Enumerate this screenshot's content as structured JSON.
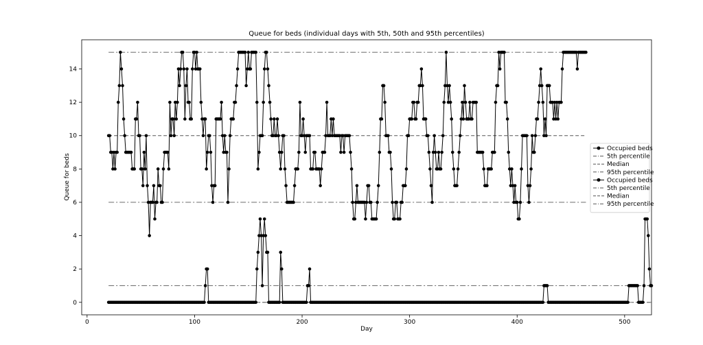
{
  "chart_data": {
    "type": "line",
    "title": "Queue for beds (individual days with 5th, 50th and 95th percentiles)",
    "xlabel": "Day",
    "ylabel": "Queue for beds",
    "xlim": [
      -5,
      525
    ],
    "ylim": [
      -0.75,
      15.75
    ],
    "xticks": [
      0,
      100,
      200,
      300,
      400,
      500
    ],
    "yticks": [
      0,
      2,
      4,
      6,
      8,
      10,
      12,
      14
    ],
    "grid": false,
    "legend_position": "right",
    "legend": [
      {
        "label": "Occupied beds",
        "style": "marker-line"
      },
      {
        "label": "5th percentile",
        "style": "dashdot"
      },
      {
        "label": "Median",
        "style": "dashed"
      },
      {
        "label": "95th percentile",
        "style": "dashdot"
      },
      {
        "label": "Occupied beds",
        "style": "marker-line"
      },
      {
        "label": "5th percentile",
        "style": "dashdot"
      },
      {
        "label": "Median",
        "style": "dashed"
      },
      {
        "label": "95th percentile",
        "style": "dashdot"
      }
    ],
    "series": [
      {
        "x_start": 20,
        "values": [
          10,
          10,
          9,
          9,
          8,
          9,
          8,
          9,
          9,
          12,
          13,
          15,
          14,
          13,
          11,
          10,
          9,
          9,
          9,
          9,
          9,
          9,
          8,
          8,
          8,
          11,
          11,
          12,
          10,
          10,
          8,
          8,
          7,
          9,
          8,
          10,
          7,
          6,
          4,
          6,
          6,
          6,
          7,
          5,
          6,
          6,
          8,
          7,
          7,
          6,
          6,
          8,
          9,
          9,
          9,
          9,
          8,
          12,
          10,
          11,
          11,
          10,
          12,
          11,
          12,
          14,
          13,
          14,
          15,
          15,
          14,
          11,
          13,
          14,
          12,
          12,
          11,
          11,
          14,
          15,
          15,
          14,
          15,
          14,
          14,
          14,
          12,
          11,
          10,
          11,
          11,
          8,
          9,
          10,
          10,
          9,
          7,
          6,
          7,
          7,
          11,
          11,
          11,
          11,
          11,
          12,
          10,
          9,
          10,
          9,
          9,
          6,
          8,
          10,
          11,
          11,
          11,
          12,
          12,
          13,
          14,
          15,
          15,
          15,
          15,
          15,
          15,
          15,
          13,
          14,
          15,
          14,
          14,
          15,
          15,
          15,
          15,
          15,
          12,
          8,
          9,
          10,
          10,
          10,
          12,
          14,
          15,
          15,
          14,
          13,
          12,
          11,
          10,
          10,
          11,
          10,
          10,
          11,
          10,
          9,
          8,
          9,
          10,
          10,
          8,
          7,
          6,
          6,
          6,
          6,
          6,
          6,
          6,
          7,
          8,
          8,
          8,
          9,
          12,
          10,
          10,
          11,
          10,
          9,
          10,
          10,
          10,
          10,
          8,
          8,
          8,
          9,
          9,
          8,
          8,
          8,
          8,
          7,
          8,
          9,
          9,
          9,
          10,
          12,
          10,
          10,
          10,
          11,
          10,
          11,
          10,
          10,
          10,
          10,
          10,
          10,
          9,
          10,
          10,
          9,
          10,
          10,
          10,
          10,
          10,
          9,
          8,
          6,
          5,
          5,
          6,
          7,
          6,
          6,
          6,
          6,
          6,
          6,
          6,
          5,
          6,
          7,
          7,
          6,
          6,
          5,
          5,
          5,
          5,
          5,
          6,
          7,
          9,
          11,
          11,
          13,
          13,
          12,
          10,
          10,
          10,
          9,
          9,
          8,
          6,
          5,
          5,
          6,
          6,
          5,
          5,
          5,
          6,
          6,
          7,
          7,
          7,
          8,
          10,
          10,
          11,
          11,
          11,
          12,
          12,
          11,
          11,
          12,
          12,
          13,
          13,
          14,
          13,
          11,
          11,
          11,
          10,
          10,
          9,
          8,
          7,
          6,
          9,
          10,
          9,
          8,
          8,
          9,
          8,
          8,
          9,
          10,
          12,
          13,
          15,
          13,
          12,
          13,
          12,
          11,
          9,
          8,
          7,
          7,
          7,
          8,
          9,
          10,
          11,
          12,
          11,
          13,
          12,
          11,
          11,
          11,
          12,
          11,
          11,
          12,
          12,
          12,
          12,
          9,
          9,
          9,
          9,
          9,
          9,
          8,
          7,
          7,
          7,
          8,
          8,
          8,
          8,
          9,
          9,
          9,
          12,
          13,
          13,
          15,
          14,
          15,
          15,
          15,
          15,
          12,
          12,
          11,
          9,
          8,
          7,
          8,
          7,
          6,
          7,
          6,
          6,
          5,
          5,
          6,
          8,
          10,
          10,
          10,
          10,
          10,
          7,
          6,
          7,
          8,
          10,
          9,
          9,
          10,
          11,
          11,
          12,
          13,
          14,
          13,
          12,
          10,
          11,
          10,
          13,
          13,
          13,
          12,
          12,
          12,
          11,
          12,
          11,
          12,
          11,
          12,
          12,
          12,
          14,
          15,
          15,
          15,
          15,
          15,
          15,
          15,
          15,
          15,
          15,
          15,
          15,
          15,
          14,
          15,
          15,
          15,
          15,
          15,
          15,
          15,
          15
        ],
        "percentiles": {
          "p5": 6,
          "median": 10,
          "p95": 15
        }
      },
      {
        "x_start": 20,
        "values": [
          0,
          0,
          0,
          0,
          0,
          0,
          0,
          0,
          0,
          0,
          0,
          0,
          0,
          0,
          0,
          0,
          0,
          0,
          0,
          0,
          0,
          0,
          0,
          0,
          0,
          0,
          0,
          0,
          0,
          0,
          0,
          0,
          0,
          0,
          0,
          0,
          0,
          0,
          0,
          0,
          0,
          0,
          0,
          0,
          0,
          0,
          0,
          0,
          0,
          0,
          0,
          0,
          0,
          0,
          0,
          0,
          0,
          0,
          0,
          0,
          0,
          0,
          0,
          0,
          0,
          0,
          0,
          0,
          0,
          0,
          0,
          0,
          0,
          0,
          0,
          0,
          0,
          0,
          0,
          0,
          0,
          0,
          0,
          0,
          0,
          0,
          0,
          0,
          0,
          0,
          1,
          2,
          2,
          0,
          0,
          0,
          0,
          0,
          0,
          0,
          0,
          0,
          0,
          0,
          0,
          0,
          0,
          0,
          0,
          0,
          0,
          0,
          0,
          0,
          0,
          0,
          0,
          0,
          0,
          0,
          0,
          0,
          0,
          0,
          0,
          0,
          0,
          0,
          0,
          0,
          0,
          0,
          0,
          0,
          0,
          0,
          0,
          0,
          2,
          3,
          4,
          5,
          4,
          1,
          4,
          5,
          4,
          3,
          3,
          0,
          0,
          0,
          0,
          0,
          0,
          0,
          0,
          0,
          0,
          0,
          3,
          2,
          0,
          0,
          0,
          0,
          0,
          0,
          0,
          0,
          0,
          0,
          0,
          0,
          0,
          0,
          0,
          0,
          0,
          0,
          0,
          0,
          0,
          0,
          0,
          1,
          1,
          2,
          0,
          0,
          0,
          0,
          0,
          0,
          0,
          0,
          0,
          0,
          0,
          0,
          0,
          0,
          0,
          0,
          0,
          0,
          0,
          0,
          0,
          0,
          0,
          0,
          0,
          0,
          0,
          0,
          0,
          0,
          0,
          0,
          0,
          0,
          0,
          0,
          0,
          0,
          0,
          0,
          0,
          0,
          0,
          0,
          0,
          0,
          0,
          0,
          0,
          0,
          0,
          0,
          0,
          0,
          0,
          0,
          0,
          0,
          0,
          0,
          0,
          0,
          0,
          0,
          0,
          0,
          0,
          0,
          0,
          0,
          0,
          0,
          0,
          0,
          0,
          0,
          0,
          0,
          0,
          0,
          0,
          0,
          0,
          0,
          0,
          0,
          0,
          0,
          0,
          0,
          0,
          0,
          0,
          0,
          0,
          0,
          0,
          0,
          0,
          0,
          0,
          0,
          0,
          0,
          0,
          0,
          0,
          0,
          0,
          0,
          0,
          0,
          0,
          0,
          0,
          0,
          0,
          0,
          0,
          0,
          0,
          0,
          0,
          0,
          0,
          0,
          0,
          0,
          0,
          0,
          0,
          0,
          0,
          0,
          0,
          0,
          0,
          0,
          0,
          0,
          0,
          0,
          0,
          0,
          0,
          0,
          0,
          0,
          0,
          0,
          0,
          0,
          0,
          0,
          0,
          0,
          0,
          0,
          0,
          0,
          0,
          0,
          0,
          0,
          0,
          0,
          0,
          0,
          0,
          0,
          0,
          0,
          0,
          0,
          0,
          0,
          0,
          0,
          0,
          0,
          0,
          0,
          0,
          0,
          0,
          0,
          0,
          0,
          0,
          0,
          0,
          0,
          0,
          0,
          0,
          0,
          0,
          0,
          0,
          0,
          0,
          0,
          0,
          0,
          0,
          0,
          0,
          0,
          0,
          0,
          0,
          0,
          0,
          0,
          0,
          0,
          0,
          1,
          1,
          1,
          1,
          0,
          0,
          0,
          0,
          0,
          0,
          0,
          0,
          0,
          0,
          0,
          0,
          0,
          0,
          0,
          0,
          0,
          0,
          0,
          0,
          0,
          0,
          0,
          0,
          0,
          0,
          0,
          0,
          0,
          0,
          0,
          0,
          0,
          0,
          0,
          0,
          0,
          0,
          0,
          0,
          0,
          0,
          0,
          0,
          0,
          0,
          0,
          0,
          0,
          0,
          0,
          0,
          0,
          0,
          0,
          0,
          0,
          0,
          0,
          0,
          0,
          0,
          0,
          0,
          0,
          0,
          0,
          0,
          0,
          0,
          0,
          0,
          0,
          0,
          0,
          1,
          1,
          1,
          1,
          1,
          1,
          1,
          1,
          1,
          0,
          0,
          0,
          0,
          0,
          1,
          5,
          5,
          5,
          4,
          2,
          1,
          1
        ],
        "percentiles": {
          "p5": 0,
          "median": 0,
          "p95": 1
        }
      }
    ]
  }
}
